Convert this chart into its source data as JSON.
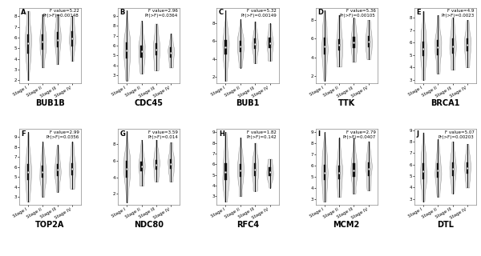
{
  "panels": [
    {
      "label": "A",
      "gene": "BUB1B",
      "f_value": "5.22",
      "p_value": "0.00148",
      "stage_params": [
        {
          "mean": 5.5,
          "std": 1.8,
          "q1": 4.5,
          "q3": 6.3,
          "median": 5.5,
          "min": 2.0,
          "max": 8.5
        },
        {
          "mean": 5.6,
          "std": 1.5,
          "q1": 4.9,
          "q3": 6.3,
          "median": 5.6,
          "min": 3.2,
          "max": 8.2
        },
        {
          "mean": 5.8,
          "std": 1.4,
          "q1": 5.1,
          "q3": 6.5,
          "median": 5.8,
          "min": 3.5,
          "max": 8.2
        },
        {
          "mean": 5.9,
          "std": 1.3,
          "q1": 5.2,
          "q3": 6.6,
          "median": 5.9,
          "min": 3.8,
          "max": 8.0
        }
      ]
    },
    {
      "label": "B",
      "gene": "CDC45",
      "f_value": "2.96",
      "p_value": "0.0364",
      "stage_params": [
        {
          "mean": 5.5,
          "std": 1.9,
          "q1": 4.7,
          "q3": 6.3,
          "median": 5.5,
          "min": 2.5,
          "max": 9.5
        },
        {
          "mean": 5.4,
          "std": 1.5,
          "q1": 4.8,
          "q3": 6.0,
          "median": 5.4,
          "min": 3.2,
          "max": 8.5
        },
        {
          "mean": 5.6,
          "std": 1.4,
          "q1": 5.0,
          "q3": 6.2,
          "median": 5.6,
          "min": 3.5,
          "max": 8.2
        },
        {
          "mean": 5.3,
          "std": 1.0,
          "q1": 4.8,
          "q3": 5.8,
          "median": 5.3,
          "min": 3.8,
          "max": 7.2
        }
      ]
    },
    {
      "label": "C",
      "gene": "BUB1",
      "f_value": "5.32",
      "p_value": "0.00149",
      "stage_params": [
        {
          "mean": 5.3,
          "std": 2.0,
          "q1": 4.5,
          "q3": 6.1,
          "median": 5.3,
          "min": 1.5,
          "max": 9.5
        },
        {
          "mean": 5.4,
          "std": 1.5,
          "q1": 4.8,
          "q3": 6.0,
          "median": 5.4,
          "min": 3.0,
          "max": 8.5
        },
        {
          "mean": 5.7,
          "std": 1.4,
          "q1": 5.1,
          "q3": 6.3,
          "median": 5.7,
          "min": 3.5,
          "max": 8.2
        },
        {
          "mean": 5.8,
          "std": 1.3,
          "q1": 5.2,
          "q3": 6.4,
          "median": 5.8,
          "min": 3.8,
          "max": 8.0
        }
      ]
    },
    {
      "label": "D",
      "gene": "TTK",
      "f_value": "5.36",
      "p_value": "0.00105",
      "stage_params": [
        {
          "mean": 5.2,
          "std": 2.1,
          "q1": 4.3,
          "q3": 6.1,
          "median": 5.2,
          "min": 1.5,
          "max": 9.0
        },
        {
          "mean": 5.3,
          "std": 1.6,
          "q1": 4.7,
          "q3": 5.9,
          "median": 5.3,
          "min": 3.0,
          "max": 8.5
        },
        {
          "mean": 5.6,
          "std": 1.4,
          "q1": 5.0,
          "q3": 6.2,
          "median": 5.6,
          "min": 3.5,
          "max": 8.2
        },
        {
          "mean": 5.7,
          "std": 1.3,
          "q1": 5.1,
          "q3": 6.3,
          "median": 5.7,
          "min": 3.8,
          "max": 8.0
        }
      ]
    },
    {
      "label": "E",
      "gene": "BRCA1",
      "f_value": "4.9",
      "p_value": "0.0023",
      "stage_params": [
        {
          "mean": 5.5,
          "std": 1.5,
          "q1": 4.9,
          "q3": 6.1,
          "median": 5.5,
          "min": 3.0,
          "max": 8.5
        },
        {
          "mean": 5.6,
          "std": 1.4,
          "q1": 5.0,
          "q3": 6.2,
          "median": 5.6,
          "min": 3.5,
          "max": 8.2
        },
        {
          "mean": 5.7,
          "std": 1.3,
          "q1": 5.1,
          "q3": 6.3,
          "median": 5.7,
          "min": 3.8,
          "max": 8.0
        },
        {
          "mean": 5.8,
          "std": 1.2,
          "q1": 5.3,
          "q3": 6.3,
          "median": 5.8,
          "min": 4.0,
          "max": 7.8
        }
      ]
    },
    {
      "label": "F",
      "gene": "TOP2A",
      "f_value": "2.99",
      "p_value": "0.0356",
      "stage_params": [
        {
          "mean": 5.5,
          "std": 1.9,
          "q1": 4.7,
          "q3": 6.3,
          "median": 5.5,
          "min": 2.5,
          "max": 9.5
        },
        {
          "mean": 5.5,
          "std": 1.5,
          "q1": 4.9,
          "q3": 6.1,
          "median": 5.5,
          "min": 3.0,
          "max": 8.5
        },
        {
          "mean": 5.7,
          "std": 1.4,
          "q1": 5.1,
          "q3": 6.3,
          "median": 5.7,
          "min": 3.5,
          "max": 8.2
        },
        {
          "mean": 5.8,
          "std": 1.4,
          "q1": 5.2,
          "q3": 6.4,
          "median": 5.8,
          "min": 3.8,
          "max": 8.5
        }
      ]
    },
    {
      "label": "G",
      "gene": "NDC80",
      "f_value": "3.59",
      "p_value": "0.014",
      "stage_params": [
        {
          "mean": 5.0,
          "std": 2.2,
          "q1": 4.0,
          "q3": 6.0,
          "median": 5.0,
          "min": 1.0,
          "max": 9.5
        },
        {
          "mean": 5.3,
          "std": 1.6,
          "q1": 4.7,
          "q3": 5.9,
          "median": 5.3,
          "min": 3.0,
          "max": 8.5
        },
        {
          "mean": 5.5,
          "std": 1.5,
          "q1": 4.9,
          "q3": 6.1,
          "median": 5.5,
          "min": 3.5,
          "max": 8.5
        },
        {
          "mean": 5.6,
          "std": 1.4,
          "q1": 5.0,
          "q3": 6.2,
          "median": 5.6,
          "min": 3.5,
          "max": 8.2
        }
      ]
    },
    {
      "label": "H",
      "gene": "RFC4",
      "f_value": "1.82",
      "p_value": "0.142",
      "stage_params": [
        {
          "mean": 5.3,
          "std": 1.8,
          "q1": 4.5,
          "q3": 6.1,
          "median": 5.3,
          "min": 2.5,
          "max": 9.0
        },
        {
          "mean": 5.4,
          "std": 1.5,
          "q1": 4.8,
          "q3": 6.0,
          "median": 5.4,
          "min": 3.0,
          "max": 8.5
        },
        {
          "mean": 5.5,
          "std": 1.4,
          "q1": 4.9,
          "q3": 6.1,
          "median": 5.5,
          "min": 3.5,
          "max": 8.0
        },
        {
          "mean": 5.3,
          "std": 0.8,
          "q1": 4.9,
          "q3": 5.7,
          "median": 5.3,
          "min": 3.8,
          "max": 6.5
        }
      ]
    },
    {
      "label": "I",
      "gene": "MCM2",
      "f_value": "2.79",
      "p_value": "0.0407",
      "stage_params": [
        {
          "mean": 5.4,
          "std": 1.7,
          "q1": 4.7,
          "q3": 6.1,
          "median": 5.4,
          "min": 2.8,
          "max": 9.0
        },
        {
          "mean": 5.4,
          "std": 1.5,
          "q1": 4.8,
          "q3": 6.0,
          "median": 5.4,
          "min": 3.2,
          "max": 8.5
        },
        {
          "mean": 5.6,
          "std": 1.4,
          "q1": 5.0,
          "q3": 6.2,
          "median": 5.6,
          "min": 3.5,
          "max": 8.5
        },
        {
          "mean": 5.7,
          "std": 1.3,
          "q1": 5.1,
          "q3": 6.3,
          "median": 5.7,
          "min": 3.8,
          "max": 8.2
        }
      ]
    },
    {
      "label": "J",
      "gene": "DTL",
      "f_value": "5.07",
      "p_value": "0.00203",
      "stage_params": [
        {
          "mean": 5.4,
          "std": 1.6,
          "q1": 4.7,
          "q3": 6.1,
          "median": 5.4,
          "min": 2.8,
          "max": 8.8
        },
        {
          "mean": 5.5,
          "std": 1.4,
          "q1": 4.9,
          "q3": 6.1,
          "median": 5.5,
          "min": 3.2,
          "max": 8.2
        },
        {
          "mean": 5.6,
          "std": 1.3,
          "q1": 5.0,
          "q3": 6.2,
          "median": 5.6,
          "min": 3.5,
          "max": 8.0
        },
        {
          "mean": 5.7,
          "std": 1.2,
          "q1": 5.2,
          "q3": 6.2,
          "median": 5.7,
          "min": 4.0,
          "max": 7.8
        }
      ]
    }
  ],
  "stages": [
    "Stage I",
    "Stage II",
    "Stage III",
    "Stage IV"
  ],
  "violin_color": "#e0e0e0",
  "violin_edge_color": "#999999",
  "box_color": "#111111",
  "median_color": "white",
  "whisker_color": "#111111",
  "bg_color": "white",
  "panel_bg": "white",
  "label_fontsize": 6,
  "gene_fontsize": 7,
  "stat_fontsize": 4.0,
  "tick_fontsize": 4.0,
  "n_samples": 500,
  "violin_width": 0.22,
  "bw_method": 0.25
}
